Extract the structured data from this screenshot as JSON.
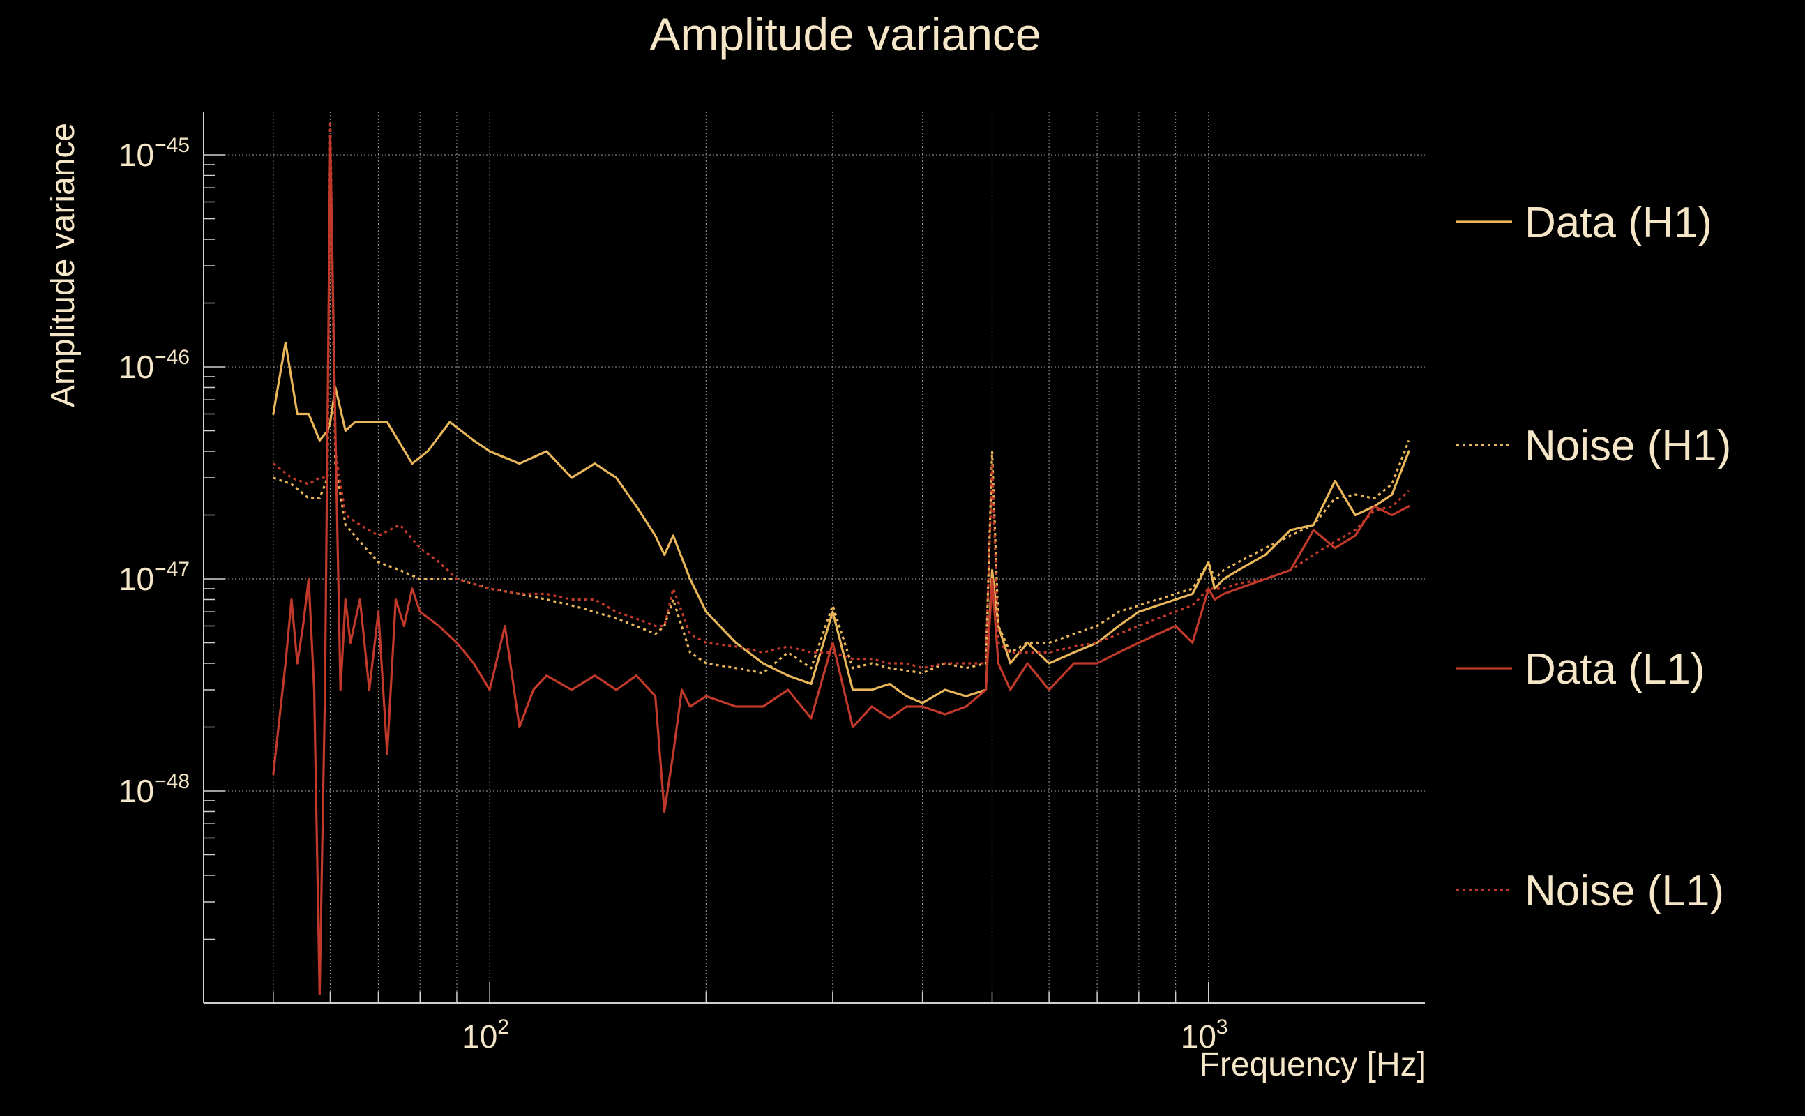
{
  "chart_data": {
    "type": "line",
    "title": "Amplitude variance",
    "xlabel": "Frequency [Hz]",
    "ylabel": "Amplitude variance",
    "xscale": "log",
    "yscale": "log",
    "xlim": [
      40,
      2000
    ],
    "ylim": [
      1e-49,
      1.6e-45
    ],
    "grid": true,
    "legend_position": "right",
    "x_ticks": [
      {
        "base": "10",
        "exp": "2",
        "value": 100
      },
      {
        "base": "10",
        "exp": "3",
        "value": 1000
      }
    ],
    "y_ticks": [
      {
        "base": "10",
        "exp": "−45",
        "value": 1e-45
      },
      {
        "base": "10",
        "exp": "−46",
        "value": 1e-46
      },
      {
        "base": "10",
        "exp": "−47",
        "value": 1e-47
      },
      {
        "base": "10",
        "exp": "−48",
        "value": 1e-48
      }
    ],
    "series": [
      {
        "name": "Data (H1)",
        "color": "#e9b75a",
        "dash": "solid",
        "x": [
          50,
          52,
          54,
          56,
          58,
          59.5,
          60,
          61,
          63,
          65,
          68,
          72,
          78,
          82,
          88,
          95,
          100,
          110,
          120,
          130,
          140,
          150,
          160,
          170,
          175,
          180,
          190,
          200,
          220,
          240,
          260,
          280,
          300,
          320,
          340,
          360,
          380,
          400,
          430,
          460,
          490,
          500,
          510,
          530,
          560,
          600,
          650,
          700,
          750,
          800,
          850,
          900,
          950,
          1000,
          1020,
          1050,
          1100,
          1200,
          1300,
          1400,
          1500,
          1600,
          1700,
          1800,
          1900
        ],
        "y": [
          6e-47,
          1.3e-46,
          6e-47,
          6e-47,
          4.5e-47,
          5e-47,
          5.5e-47,
          8e-47,
          5e-47,
          5.5e-47,
          5.5e-47,
          5.5e-47,
          3.5e-47,
          4e-47,
          5.5e-47,
          4.5e-47,
          4e-47,
          3.5e-47,
          4e-47,
          3e-47,
          3.5e-47,
          3e-47,
          2.2e-47,
          1.6e-47,
          1.3e-47,
          1.6e-47,
          1e-47,
          7e-48,
          5e-48,
          4e-48,
          3.5e-48,
          3.2e-48,
          7e-48,
          3e-48,
          3e-48,
          3.2e-48,
          2.8e-48,
          2.6e-48,
          3e-48,
          2.8e-48,
          3e-48,
          1.1e-47,
          6e-48,
          4e-48,
          5e-48,
          4e-48,
          4.5e-48,
          5e-48,
          6e-48,
          7e-48,
          7.5e-48,
          8e-48,
          8.5e-48,
          1.2e-47,
          9e-48,
          1e-47,
          1.1e-47,
          1.3e-47,
          1.7e-47,
          1.8e-47,
          2.9e-47,
          2e-47,
          2.2e-47,
          2.5e-47,
          4e-47
        ]
      },
      {
        "name": "Noise (H1)",
        "color": "#e9b75a",
        "dash": "dotted",
        "x": [
          50,
          53,
          56,
          58,
          59.5,
          60,
          61,
          63,
          66,
          70,
          75,
          80,
          85,
          90,
          100,
          110,
          120,
          130,
          140,
          150,
          160,
          170,
          175,
          180,
          190,
          200,
          220,
          240,
          260,
          280,
          300,
          320,
          340,
          360,
          380,
          400,
          430,
          460,
          490,
          500,
          510,
          530,
          560,
          600,
          650,
          700,
          750,
          800,
          850,
          900,
          950,
          1000,
          1020,
          1050,
          1100,
          1200,
          1300,
          1400,
          1500,
          1600,
          1700,
          1800,
          1900
        ],
        "y": [
          3e-47,
          2.8e-47,
          2.4e-47,
          2.4e-47,
          3e-47,
          1.4e-45,
          3.5e-47,
          1.8e-47,
          1.5e-47,
          1.2e-47,
          1.1e-47,
          1e-47,
          1e-47,
          1e-47,
          9e-48,
          8.5e-48,
          8e-48,
          7.5e-48,
          7e-48,
          6.5e-48,
          6e-48,
          5.5e-48,
          6e-48,
          8e-48,
          4.5e-48,
          4e-48,
          3.8e-48,
          3.6e-48,
          4.5e-48,
          3.8e-48,
          7.5e-48,
          3.8e-48,
          4e-48,
          3.8e-48,
          3.7e-48,
          3.6e-48,
          4e-48,
          3.8e-48,
          4e-48,
          4e-47,
          6e-48,
          4.5e-48,
          5e-48,
          5e-48,
          5.5e-48,
          6e-48,
          7e-48,
          7.5e-48,
          8e-48,
          8.5e-48,
          9e-48,
          1.2e-47,
          1e-47,
          1.1e-47,
          1.2e-47,
          1.4e-47,
          1.6e-47,
          1.8e-47,
          2.4e-47,
          2.5e-47,
          2.4e-47,
          2.8e-47,
          4.5e-47
        ]
      },
      {
        "name": "Data (L1)",
        "color": "#c0392b",
        "dash": "solid",
        "x": [
          50,
          52,
          53,
          54,
          55,
          56,
          57,
          58,
          59,
          60,
          61,
          62,
          63,
          64,
          66,
          68,
          70,
          72,
          74,
          76,
          78,
          80,
          85,
          90,
          95,
          100,
          105,
          110,
          115,
          120,
          130,
          140,
          150,
          160,
          170,
          175,
          180,
          185,
          190,
          200,
          220,
          240,
          260,
          280,
          300,
          320,
          340,
          360,
          380,
          400,
          430,
          460,
          490,
          500,
          510,
          530,
          560,
          600,
          650,
          700,
          750,
          800,
          850,
          900,
          950,
          1000,
          1020,
          1050,
          1100,
          1200,
          1300,
          1400,
          1500,
          1600,
          1700,
          1800,
          1900
        ],
        "y": [
          1.2e-48,
          4e-48,
          8e-48,
          4e-48,
          6e-48,
          1e-47,
          3e-48,
          1.1e-49,
          3e-48,
          1.2e-45,
          5e-47,
          3e-48,
          8e-48,
          5e-48,
          8e-48,
          3e-48,
          7e-48,
          1.5e-48,
          8e-48,
          6e-48,
          9e-48,
          7e-48,
          6e-48,
          5e-48,
          4e-48,
          3e-48,
          6e-48,
          2e-48,
          3e-48,
          3.5e-48,
          3e-48,
          3.5e-48,
          3e-48,
          3.5e-48,
          2.8e-48,
          8e-49,
          1.5e-48,
          3e-48,
          2.5e-48,
          2.8e-48,
          2.5e-48,
          2.5e-48,
          3e-48,
          2.2e-48,
          5e-48,
          2e-48,
          2.5e-48,
          2.2e-48,
          2.5e-48,
          2.5e-48,
          2.3e-48,
          2.5e-48,
          3e-48,
          1e-47,
          4e-48,
          3e-48,
          4e-48,
          3e-48,
          4e-48,
          4e-48,
          4.5e-48,
          5e-48,
          5.5e-48,
          6e-48,
          5e-48,
          9e-48,
          8e-48,
          8.5e-48,
          9e-48,
          1e-47,
          1.1e-47,
          1.7e-47,
          1.4e-47,
          1.6e-47,
          2.2e-47,
          2e-47,
          2.2e-47
        ]
      },
      {
        "name": "Noise (L1)",
        "color": "#c0392b",
        "dash": "dotted",
        "x": [
          50,
          53,
          56,
          58,
          59.5,
          60,
          61,
          63,
          66,
          70,
          75,
          80,
          85,
          90,
          100,
          110,
          120,
          130,
          140,
          150,
          160,
          170,
          175,
          180,
          190,
          200,
          220,
          240,
          260,
          280,
          300,
          320,
          340,
          360,
          380,
          400,
          430,
          460,
          490,
          500,
          510,
          530,
          560,
          600,
          650,
          700,
          750,
          800,
          850,
          900,
          950,
          1000,
          1020,
          1050,
          1100,
          1200,
          1300,
          1400,
          1500,
          1600,
          1700,
          1800,
          1900
        ],
        "y": [
          3.5e-47,
          3e-47,
          2.8e-47,
          3e-47,
          3e-47,
          1.4e-45,
          4e-47,
          2e-47,
          1.8e-47,
          1.6e-47,
          1.8e-47,
          1.4e-47,
          1.2e-47,
          1e-47,
          9e-48,
          8.5e-48,
          8.5e-48,
          8e-48,
          8e-48,
          7e-48,
          6.5e-48,
          6e-48,
          6e-48,
          9e-48,
          5.5e-48,
          5e-48,
          4.8e-48,
          4.5e-48,
          4.8e-48,
          4.5e-48,
          4.5e-48,
          4.2e-48,
          4.2e-48,
          4e-48,
          4e-48,
          3.8e-48,
          4e-48,
          4e-48,
          4e-48,
          3.5e-47,
          5e-48,
          4.5e-48,
          4.5e-48,
          4.5e-48,
          4.8e-48,
          5e-48,
          5.5e-48,
          6e-48,
          6.5e-48,
          7e-48,
          7.5e-48,
          9e-48,
          9e-48,
          9e-48,
          9.5e-48,
          1e-47,
          1.1e-47,
          1.3e-47,
          1.5e-47,
          1.7e-47,
          2.1e-47,
          2.2e-47,
          2.6e-47
        ]
      }
    ]
  }
}
